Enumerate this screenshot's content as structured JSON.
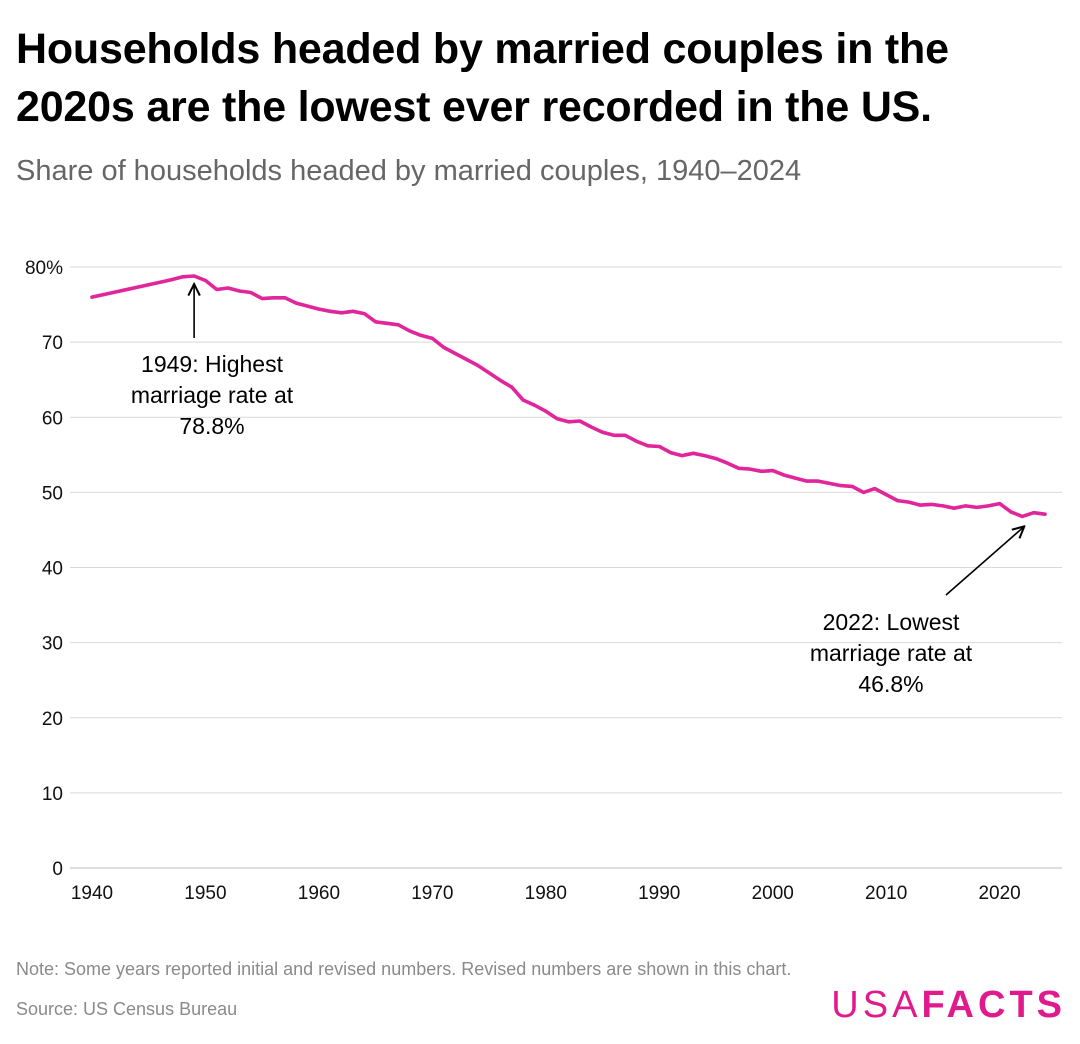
{
  "header": {
    "title": "Households headed by married couples in the 2020s are the lowest ever recorded in the US.",
    "subtitle": "Share of households headed by married couples, 1940–2024"
  },
  "footer": {
    "note": "Note: Some years reported initial and revised numbers. Revised numbers are shown in this chart.",
    "source": "Source: US Census Bureau",
    "logo_usa": "USA",
    "logo_facts": "FACTS"
  },
  "colors": {
    "line": "#e0269a",
    "grid": "#d9d9d9",
    "axis_text": "#111111",
    "annotation": "#000000"
  },
  "chart_data": {
    "type": "line",
    "title": "Households headed by married couples in the 2020s are the lowest ever recorded in the US.",
    "subtitle": "Share of households headed by married couples, 1940–2024",
    "xlabel": "",
    "ylabel": "",
    "xlim": [
      1940,
      2024
    ],
    "ylim": [
      0,
      80
    ],
    "x_ticks": [
      1940,
      1950,
      1960,
      1970,
      1980,
      1990,
      2000,
      2010,
      2020
    ],
    "y_ticks": [
      0,
      10,
      20,
      30,
      40,
      50,
      60,
      70,
      80
    ],
    "y_tick_labels": [
      "0",
      "10",
      "20",
      "30",
      "40",
      "50",
      "60",
      "70",
      "80%"
    ],
    "grid": true,
    "legend": "none",
    "series": [
      {
        "x": [
          1940,
          1947,
          1948,
          1949,
          1950,
          1951,
          1952,
          1953,
          1954,
          1955,
          1956,
          1957,
          1958,
          1959,
          1960,
          1961,
          1962,
          1963,
          1964,
          1965,
          1966,
          1967,
          1968,
          1969,
          1970,
          1971,
          1972,
          1973,
          1974,
          1975,
          1976,
          1977,
          1978,
          1979,
          1980,
          1981,
          1982,
          1983,
          1984,
          1985,
          1986,
          1987,
          1988,
          1989,
          1990,
          1991,
          1992,
          1993,
          1994,
          1995,
          1996,
          1997,
          1998,
          1999,
          2000,
          2001,
          2002,
          2003,
          2004,
          2005,
          2006,
          2007,
          2008,
          2009,
          2010,
          2011,
          2012,
          2013,
          2014,
          2015,
          2016,
          2017,
          2018,
          2019,
          2020,
          2021,
          2022,
          2023,
          2024
        ],
        "values": [
          76.0,
          78.3,
          78.7,
          78.8,
          78.2,
          77.0,
          77.2,
          76.8,
          76.6,
          75.8,
          75.9,
          75.9,
          75.2,
          74.8,
          74.4,
          74.1,
          73.9,
          74.1,
          73.8,
          72.7,
          72.5,
          72.3,
          71.5,
          70.9,
          70.5,
          69.3,
          68.5,
          67.7,
          66.9,
          65.9,
          64.9,
          64.0,
          62.3,
          61.6,
          60.8,
          59.8,
          59.4,
          59.5,
          58.7,
          58.0,
          57.6,
          57.6,
          56.8,
          56.2,
          56.1,
          55.3,
          54.9,
          55.2,
          54.9,
          54.5,
          53.9,
          53.2,
          53.1,
          52.8,
          52.9,
          52.3,
          51.9,
          51.5,
          51.5,
          51.2,
          50.9,
          50.8,
          50.0,
          50.5,
          49.7,
          48.9,
          48.7,
          48.3,
          48.4,
          48.2,
          47.9,
          48.2,
          48.0,
          48.2,
          48.5,
          47.4,
          46.8,
          47.3,
          47.1
        ]
      }
    ],
    "annotations": [
      {
        "lines": [
          "1949: Highest",
          "marriage rate at",
          "78.8%"
        ],
        "x": 1949,
        "y": 78.8
      },
      {
        "lines": [
          "2022: Lowest",
          "marriage rate at",
          "46.8%"
        ],
        "x": 2022,
        "y": 46.8
      }
    ]
  }
}
